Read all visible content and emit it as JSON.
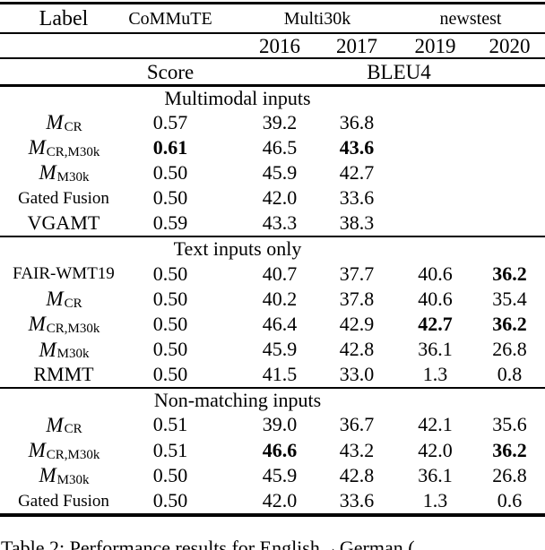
{
  "page": {
    "background_color": "#ffffff",
    "text_color": "#000000"
  },
  "table": {
    "header_row1": {
      "label": "Label",
      "commute": "CoMMuTE",
      "multi30k": "Multi30k",
      "newstest": "newstest"
    },
    "header_row2": {
      "y2016": "2016",
      "y2017": "2017",
      "y2019": "2019",
      "y2020": "2020"
    },
    "header_row3": {
      "score": "Score",
      "bleu4": "BLEU4"
    },
    "sections": [
      {
        "title": "Multimodal inputs",
        "rows": [
          {
            "label_type": "math",
            "label_base": "M",
            "label_sub": "CR",
            "cells": [
              "0.57",
              "39.2",
              "36.8",
              "",
              ""
            ],
            "bold": [
              false,
              false,
              false,
              false,
              false
            ]
          },
          {
            "label_type": "math",
            "label_base": "M",
            "label_sub": "CR,M30k",
            "cells": [
              "0.61",
              "46.5",
              "43.6",
              "",
              ""
            ],
            "bold": [
              true,
              false,
              true,
              false,
              false
            ]
          },
          {
            "label_type": "math",
            "label_base": "M",
            "label_sub": "M30k",
            "cells": [
              "0.50",
              "45.9",
              "42.7",
              "",
              ""
            ],
            "bold": [
              false,
              false,
              false,
              false,
              false
            ]
          },
          {
            "label_type": "text-small",
            "label_text": "Gated Fusion",
            "cells": [
              "0.50",
              "42.0",
              "33.6",
              "",
              ""
            ],
            "bold": [
              false,
              false,
              false,
              false,
              false
            ]
          },
          {
            "label_type": "text",
            "label_text": "VGAMT",
            "cells": [
              "0.59",
              "43.3",
              "38.3",
              "",
              ""
            ],
            "bold": [
              false,
              false,
              false,
              false,
              false
            ]
          }
        ]
      },
      {
        "title": "Text inputs only",
        "rows": [
          {
            "label_type": "text-small",
            "label_text": "FAIR-WMT19",
            "cells": [
              "0.50",
              "40.7",
              "37.7",
              "40.6",
              "36.2"
            ],
            "bold": [
              false,
              false,
              false,
              false,
              true
            ]
          },
          {
            "label_type": "math",
            "label_base": "M",
            "label_sub": "CR",
            "cells": [
              "0.50",
              "40.2",
              "37.8",
              "40.6",
              "35.4"
            ],
            "bold": [
              false,
              false,
              false,
              false,
              false
            ]
          },
          {
            "label_type": "math",
            "label_base": "M",
            "label_sub": "CR,M30k",
            "cells": [
              "0.50",
              "46.4",
              "42.9",
              "42.7",
              "36.2"
            ],
            "bold": [
              false,
              false,
              false,
              true,
              true
            ]
          },
          {
            "label_type": "math",
            "label_base": "M",
            "label_sub": "M30k",
            "cells": [
              "0.50",
              "45.9",
              "42.8",
              "36.1",
              "26.8"
            ],
            "bold": [
              false,
              false,
              false,
              false,
              false
            ]
          },
          {
            "label_type": "text",
            "label_text": "RMMT",
            "cells": [
              "0.50",
              "41.5",
              "33.0",
              "1.3",
              "0.8"
            ],
            "bold": [
              false,
              false,
              false,
              false,
              false
            ]
          }
        ]
      },
      {
        "title": "Non-matching inputs",
        "rows": [
          {
            "label_type": "math",
            "label_base": "M",
            "label_sub": "CR",
            "cells": [
              "0.51",
              "39.0",
              "36.7",
              "42.1",
              "35.6"
            ],
            "bold": [
              false,
              false,
              false,
              false,
              false
            ]
          },
          {
            "label_type": "math",
            "label_base": "M",
            "label_sub": "CR,M30k",
            "cells": [
              "0.51",
              "46.6",
              "43.2",
              "42.0",
              "36.2"
            ],
            "bold": [
              false,
              true,
              false,
              false,
              true
            ]
          },
          {
            "label_type": "math",
            "label_base": "M",
            "label_sub": "M30k",
            "cells": [
              "0.50",
              "45.9",
              "42.8",
              "36.1",
              "26.8"
            ],
            "bold": [
              false,
              false,
              false,
              false,
              false
            ]
          },
          {
            "label_type": "text-small",
            "label_text": "Gated Fusion",
            "cells": [
              "0.50",
              "42.0",
              "33.6",
              "1.3",
              "0.6"
            ],
            "bold": [
              false,
              false,
              false,
              false,
              false
            ]
          }
        ]
      }
    ],
    "caption": "Table 2: Performance results for English→German ("
  }
}
